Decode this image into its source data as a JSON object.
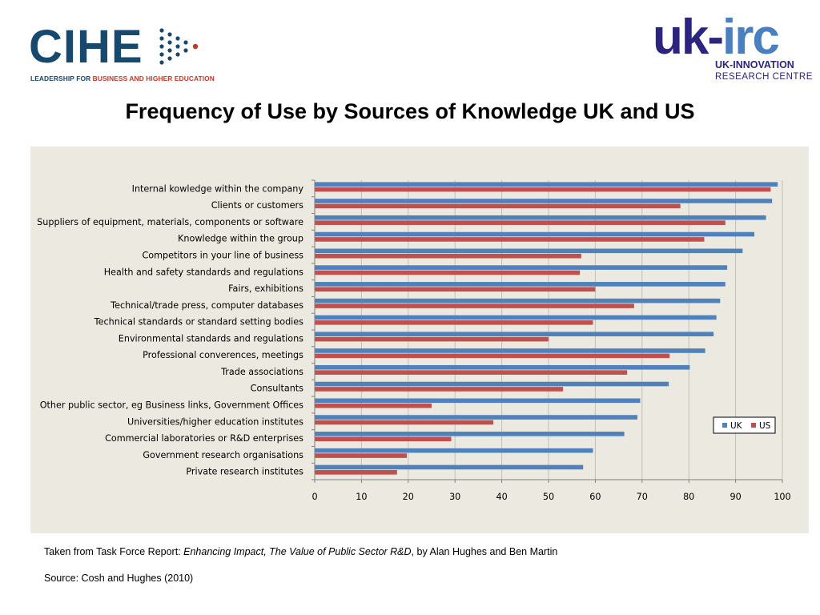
{
  "logos": {
    "cihe_name": "CIHE",
    "cihe_tagline_part1": "LEADERSHIP FOR ",
    "cihe_tagline_part2": "BUSINESS AND HIGHER EDUCATION",
    "ukirc_part1": "uk-",
    "ukirc_part2": "irc",
    "ukirc_line1": "UK-INNOVATION",
    "ukirc_line2": "RESEARCH CENTRE"
  },
  "title": "Frequency of Use by Sources of Knowledge UK and US",
  "caption": {
    "prefix": "Taken from Task Force Report: ",
    "italic": "Enhancing Impact, The Value of Public Sector R&D",
    "suffix": ", by Alan Hughes and Ben Martin"
  },
  "source": "Source: Cosh and Hughes (2010)",
  "colors": {
    "uk": "#4f81bd",
    "us": "#c0504d",
    "panel_bg": "#ece9e0",
    "cihe_blue": "#17496e",
    "cihe_red": "#c0392b",
    "ukirc_navy": "#2c2580",
    "ukirc_blue": "#4a7fc0"
  },
  "chart_data": {
    "type": "bar",
    "orientation": "horizontal",
    "title": "",
    "xlabel": "",
    "ylabel": "",
    "xlim": [
      0,
      100
    ],
    "xticks": [
      0,
      10,
      20,
      30,
      40,
      50,
      60,
      70,
      80,
      90,
      100
    ],
    "grid": true,
    "legend_position": "right",
    "categories": [
      "Internal kowledge within the company",
      "Clients or customers",
      "Suppliers of equipment, materials, components or software",
      "Knowledge within the group",
      "Competitors in your line of business",
      "Health and safety standards and regulations",
      "Fairs, exhibitions",
      "Technical/trade press, computer databases",
      "Technical standards or standard setting bodies",
      "Environmental standards and regulations",
      "Professional converences, meetings",
      "Trade associations",
      "Consultants",
      "Other public sector, eg Business links, Government Offices",
      "Universities/higher education institutes",
      "Commercial laboratories or R&D enterprises",
      "Government research organisations",
      "Private research institutes"
    ],
    "series": [
      {
        "name": "UK",
        "values": [
          99,
          97.8,
          96.5,
          94,
          91.5,
          88.2,
          87.8,
          86.7,
          85.9,
          85.3,
          83.5,
          80.2,
          75.7,
          69.6,
          69,
          66.2,
          59.5,
          57.4
        ]
      },
      {
        "name": "US",
        "values": [
          97.5,
          78.2,
          87.8,
          83.3,
          57,
          56.7,
          60,
          68.3,
          59.5,
          50,
          75.9,
          66.8,
          53.1,
          25,
          38.2,
          29.2,
          19.7,
          17.6
        ]
      }
    ]
  }
}
